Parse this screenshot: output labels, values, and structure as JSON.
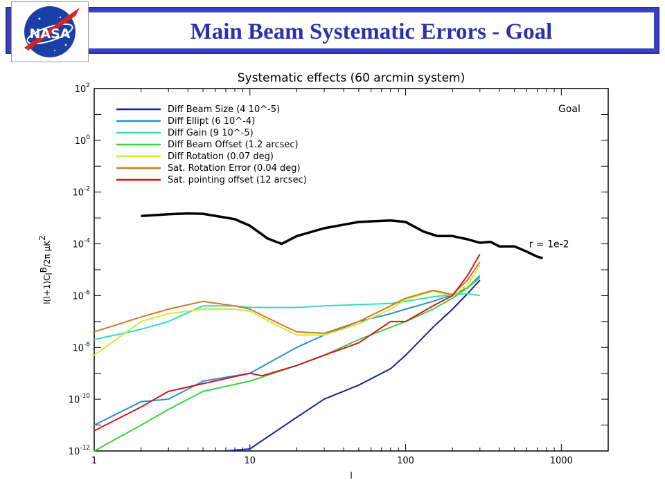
{
  "slide": {
    "title": "Main Beam Systematic Errors - Goal",
    "logo_text": "NASA",
    "logo_icon": "nasa-meatball-icon"
  },
  "colors": {
    "header_bar": "#3a3fc4",
    "title_text": "#2b2fb0"
  },
  "chart_data": {
    "type": "line",
    "title": "Systematic effects (60 arcmin system)",
    "xlabel": "l",
    "ylabel": "l(l+1)C_l^B/2π μK²",
    "xscale": "log",
    "yscale": "log",
    "xlim": [
      1,
      2000
    ],
    "ylim": [
      1e-12,
      100
    ],
    "x_ticks": [
      1,
      10,
      100,
      1000
    ],
    "y_ticks": [
      1e-12,
      1e-10,
      1e-08,
      1e-06,
      0.0001,
      0.01,
      1,
      100
    ],
    "x_tick_labels": [
      "1",
      "10",
      "100",
      "1000"
    ],
    "y_tick_labels": [
      {
        "base": "10",
        "exp": "-12"
      },
      {
        "base": "10",
        "exp": "-10"
      },
      {
        "base": "10",
        "exp": "-8"
      },
      {
        "base": "10",
        "exp": "-6"
      },
      {
        "base": "10",
        "exp": "-4"
      },
      {
        "base": "10",
        "exp": "-2"
      },
      {
        "base": "10",
        "exp": "0"
      },
      {
        "base": "10",
        "exp": "2"
      }
    ],
    "legend_position": "top-left",
    "annotations": [
      {
        "text": "Goal",
        "position": "top-right"
      },
      {
        "text": "r = 1e-2",
        "x": 560,
        "y": 0.0001
      }
    ],
    "series": [
      {
        "name": "Diff Beam Size (4 10^-5)",
        "color": "#1c1ca0",
        "x": [
          7,
          10,
          20,
          30,
          50,
          80,
          100,
          150,
          200,
          250,
          300
        ],
        "y": [
          1e-12,
          1.2e-12,
          2e-11,
          1e-10,
          3.5e-10,
          1.5e-09,
          5e-09,
          6e-08,
          3e-07,
          1.2e-06,
          4e-06
        ]
      },
      {
        "name": "Diff Ellipt (6 10^-4)",
        "color": "#2a8ed2",
        "x": [
          1,
          2,
          3,
          5,
          10,
          20,
          30,
          50,
          80,
          100,
          150,
          200,
          250,
          300
        ],
        "y": [
          1e-11,
          8e-11,
          1e-10,
          5e-10,
          1e-09,
          1e-08,
          3e-08,
          1e-07,
          2e-07,
          3e-07,
          6e-07,
          1.1e-06,
          2e-06,
          6e-06
        ]
      },
      {
        "name": "Diff Gain (9 10^-5)",
        "color": "#2ee0b4",
        "x": [
          1,
          2,
          3,
          5,
          8,
          10,
          20,
          30,
          50,
          80,
          100,
          150,
          200,
          250,
          300
        ],
        "y": [
          2e-08,
          5e-08,
          1e-07,
          4e-07,
          4e-07,
          3.5e-07,
          3.5e-07,
          4e-07,
          4.5e-07,
          5e-07,
          6e-07,
          9e-07,
          1.1e-06,
          1.2e-06,
          1e-06
        ]
      },
      {
        "name": "Diff Beam Offset (1.2 arcsec)",
        "color": "#3cd23c",
        "x": [
          1,
          2,
          3,
          5,
          10,
          20,
          30,
          50,
          80,
          100,
          150,
          200,
          250,
          300
        ],
        "y": [
          1e-12,
          1e-11,
          4e-11,
          2e-10,
          5e-10,
          2e-09,
          5e-09,
          2e-08,
          6e-08,
          1e-07,
          3e-07,
          8e-07,
          2e-06,
          5e-06
        ]
      },
      {
        "name": "Diff Rotation (0.07 deg)",
        "color": "#d4e832",
        "x": [
          1,
          2,
          3,
          5,
          8,
          10,
          15,
          20,
          30,
          50,
          80,
          100,
          150,
          200,
          250,
          300
        ],
        "y": [
          5e-09,
          1e-07,
          2e-07,
          3e-07,
          3e-07,
          2.5e-07,
          7e-08,
          3e-08,
          3e-08,
          8e-08,
          3e-07,
          7e-07,
          1.5e-06,
          1e-06,
          2.5e-06,
          1.5e-05
        ]
      },
      {
        "name": "Sat. Rotation Error (0.04 deg)",
        "color": "#d2782a",
        "x": [
          1,
          2,
          3,
          5,
          8,
          10,
          15,
          20,
          30,
          50,
          80,
          100,
          150,
          200,
          250,
          300
        ],
        "y": [
          4e-08,
          1.5e-07,
          3e-07,
          6e-07,
          4e-07,
          3e-07,
          9e-08,
          4e-08,
          3.5e-08,
          1e-07,
          4e-07,
          8e-07,
          1.6e-06,
          1.1e-06,
          4e-06,
          2e-05
        ]
      },
      {
        "name": "Sat. pointing offset (12 arcsec)",
        "color": "#cc1818",
        "x": [
          1,
          2,
          3,
          5,
          10,
          12,
          20,
          30,
          50,
          80,
          100,
          150,
          200,
          250,
          300
        ],
        "y": [
          6e-12,
          5e-11,
          2e-10,
          4e-10,
          1e-09,
          8e-10,
          2e-09,
          5e-09,
          1.5e-08,
          1e-07,
          1e-07,
          4e-07,
          1e-06,
          6e-06,
          4e-05
        ]
      },
      {
        "name": "",
        "color": "#000000",
        "x": [
          2,
          3,
          4,
          5,
          8,
          10,
          13,
          16,
          20,
          30,
          50,
          80,
          100,
          130,
          160,
          200,
          250,
          300,
          350,
          400,
          500,
          600,
          700,
          760
        ],
        "y": [
          0.0012,
          0.0014,
          0.0015,
          0.00145,
          0.0009,
          0.0005,
          0.00016,
          0.0001,
          0.0002,
          0.0004,
          0.0007,
          0.0008,
          0.0007,
          0.0003,
          0.0002,
          0.0002,
          0.00015,
          0.00011,
          0.00012,
          8e-05,
          8e-05,
          5e-05,
          3.2e-05,
          2.8e-05
        ]
      }
    ]
  }
}
